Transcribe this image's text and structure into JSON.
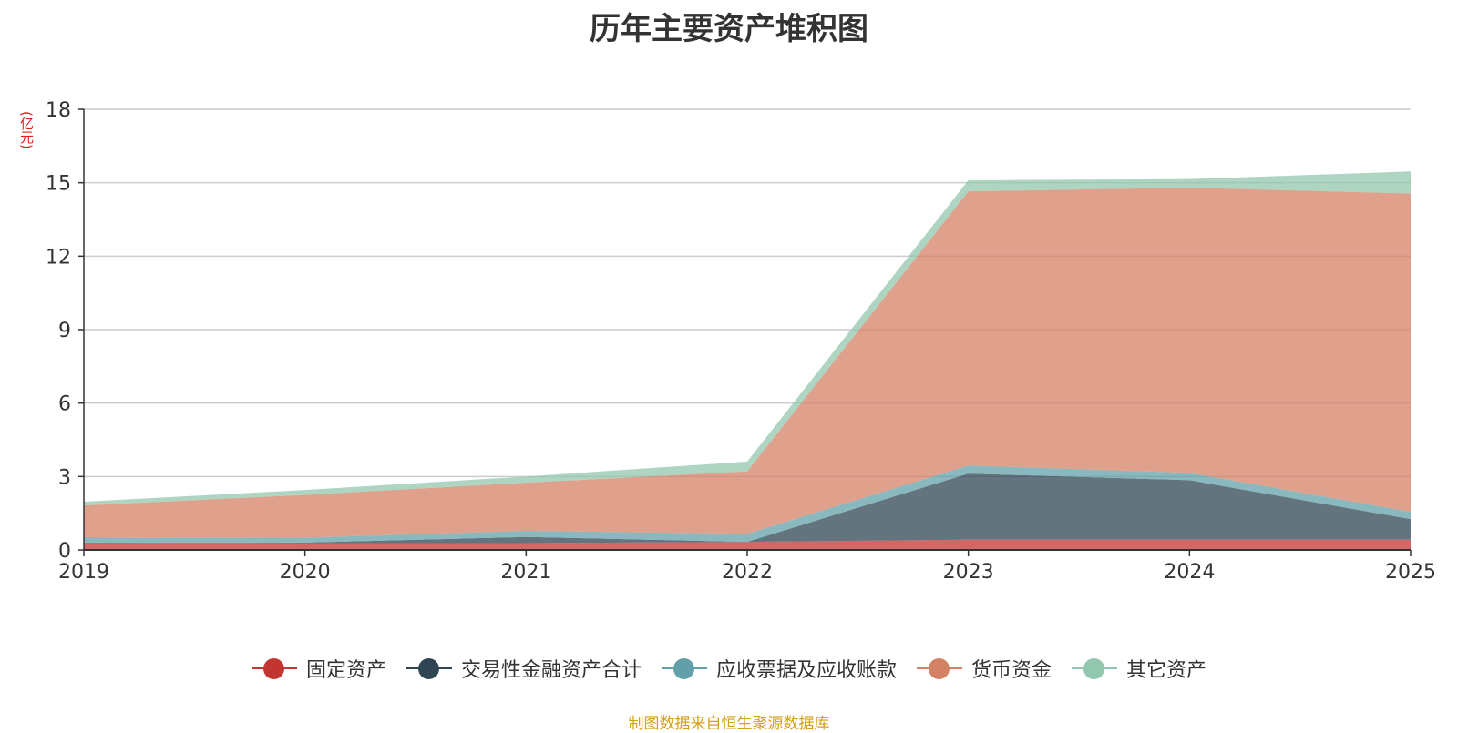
{
  "chart_data": {
    "type": "area",
    "stacked": true,
    "title": "历年主要资产堆积图",
    "ylabel": "(亿元)",
    "xlabel": "",
    "categories": [
      "2019",
      "2020",
      "2021",
      "2022",
      "2023",
      "2024",
      "2025"
    ],
    "ylim": [
      0,
      18
    ],
    "yticks": [
      0,
      3,
      6,
      9,
      12,
      15,
      18
    ],
    "grid": true,
    "legend_position": "bottom",
    "series": [
      {
        "name": "固定资产",
        "color": "#c23531",
        "values": [
          0.3,
          0.28,
          0.28,
          0.33,
          0.42,
          0.42,
          0.42
        ]
      },
      {
        "name": "交易性金融资产合计",
        "color": "#2f4554",
        "values": [
          0.0,
          0.02,
          0.25,
          0.0,
          2.7,
          2.43,
          0.84
        ]
      },
      {
        "name": "应收票据及应收账款",
        "color": "#61a0a8",
        "values": [
          0.22,
          0.2,
          0.25,
          0.33,
          0.33,
          0.3,
          0.3
        ]
      },
      {
        "name": "货币资金",
        "color": "#d48265",
        "values": [
          1.3,
          1.75,
          1.97,
          2.55,
          11.2,
          11.65,
          13.0
        ]
      },
      {
        "name": "其它资产",
        "color": "#91c7ae",
        "values": [
          0.15,
          0.2,
          0.25,
          0.4,
          0.45,
          0.35,
          0.9
        ]
      }
    ]
  },
  "source_note": "制图数据来自恒生聚源数据库"
}
